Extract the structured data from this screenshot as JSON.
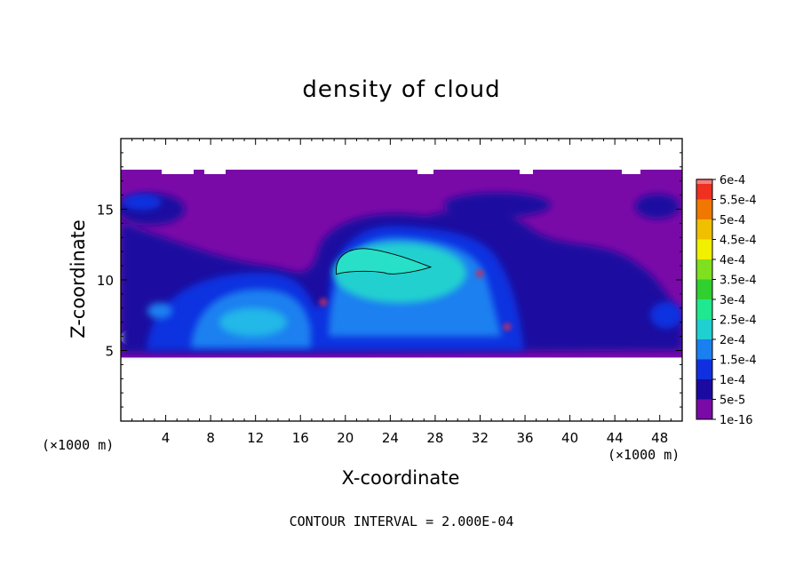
{
  "chart_data": {
    "type": "heatmap",
    "title": "density of cloud",
    "xlabel": "X-coordinate",
    "ylabel": "Z-coordinate",
    "x_unit": "(×1000 m)",
    "y_unit": "(×1000 m)",
    "footer": "CONTOUR INTERVAL = 2.000E-04",
    "xlim": [
      0,
      50
    ],
    "ylim": [
      0,
      20
    ],
    "xticks": [
      4,
      8,
      12,
      16,
      20,
      24,
      28,
      32,
      36,
      40,
      44,
      48
    ],
    "yticks": [
      5,
      10,
      15
    ],
    "colorbar": {
      "levels": [
        "1e-16",
        "5e-5",
        "1e-4",
        "1.5e-4",
        "2e-4",
        "2.5e-4",
        "3e-4",
        "3.5e-4",
        "4e-4",
        "4.5e-4",
        "5e-4",
        "5.5e-4",
        "6e-4"
      ],
      "colors": [
        "#7a0aa8",
        "#1a0aa0",
        "#1030e0",
        "#1a80f0",
        "#20d0d0",
        "#20e890",
        "#30d030",
        "#80e020",
        "#f0f000",
        "#f0c000",
        "#f07800",
        "#f03020",
        "#f08080"
      ]
    },
    "cloud_base_km": 4.5,
    "cloud_top_km": 17.8,
    "features": [
      {
        "name": "upper-anvil",
        "x_range": [
          0,
          50
        ],
        "z_range": [
          15,
          17.8
        ],
        "level": "1e-16"
      },
      {
        "name": "mid-layer",
        "x_range": [
          0,
          50
        ],
        "z_range": [
          4.5,
          15
        ],
        "level": "5e-5"
      },
      {
        "name": "west-cell",
        "x_center": 12,
        "z_center": 7.5,
        "level": "1.5e-4"
      },
      {
        "name": "central-core",
        "x_center": 24,
        "z_center": 10,
        "level": "2e-4"
      },
      {
        "name": "max-contour",
        "x_range": [
          19,
          27.5
        ],
        "z_range": [
          10.2,
          12.2
        ],
        "level": "2e-4"
      }
    ]
  }
}
